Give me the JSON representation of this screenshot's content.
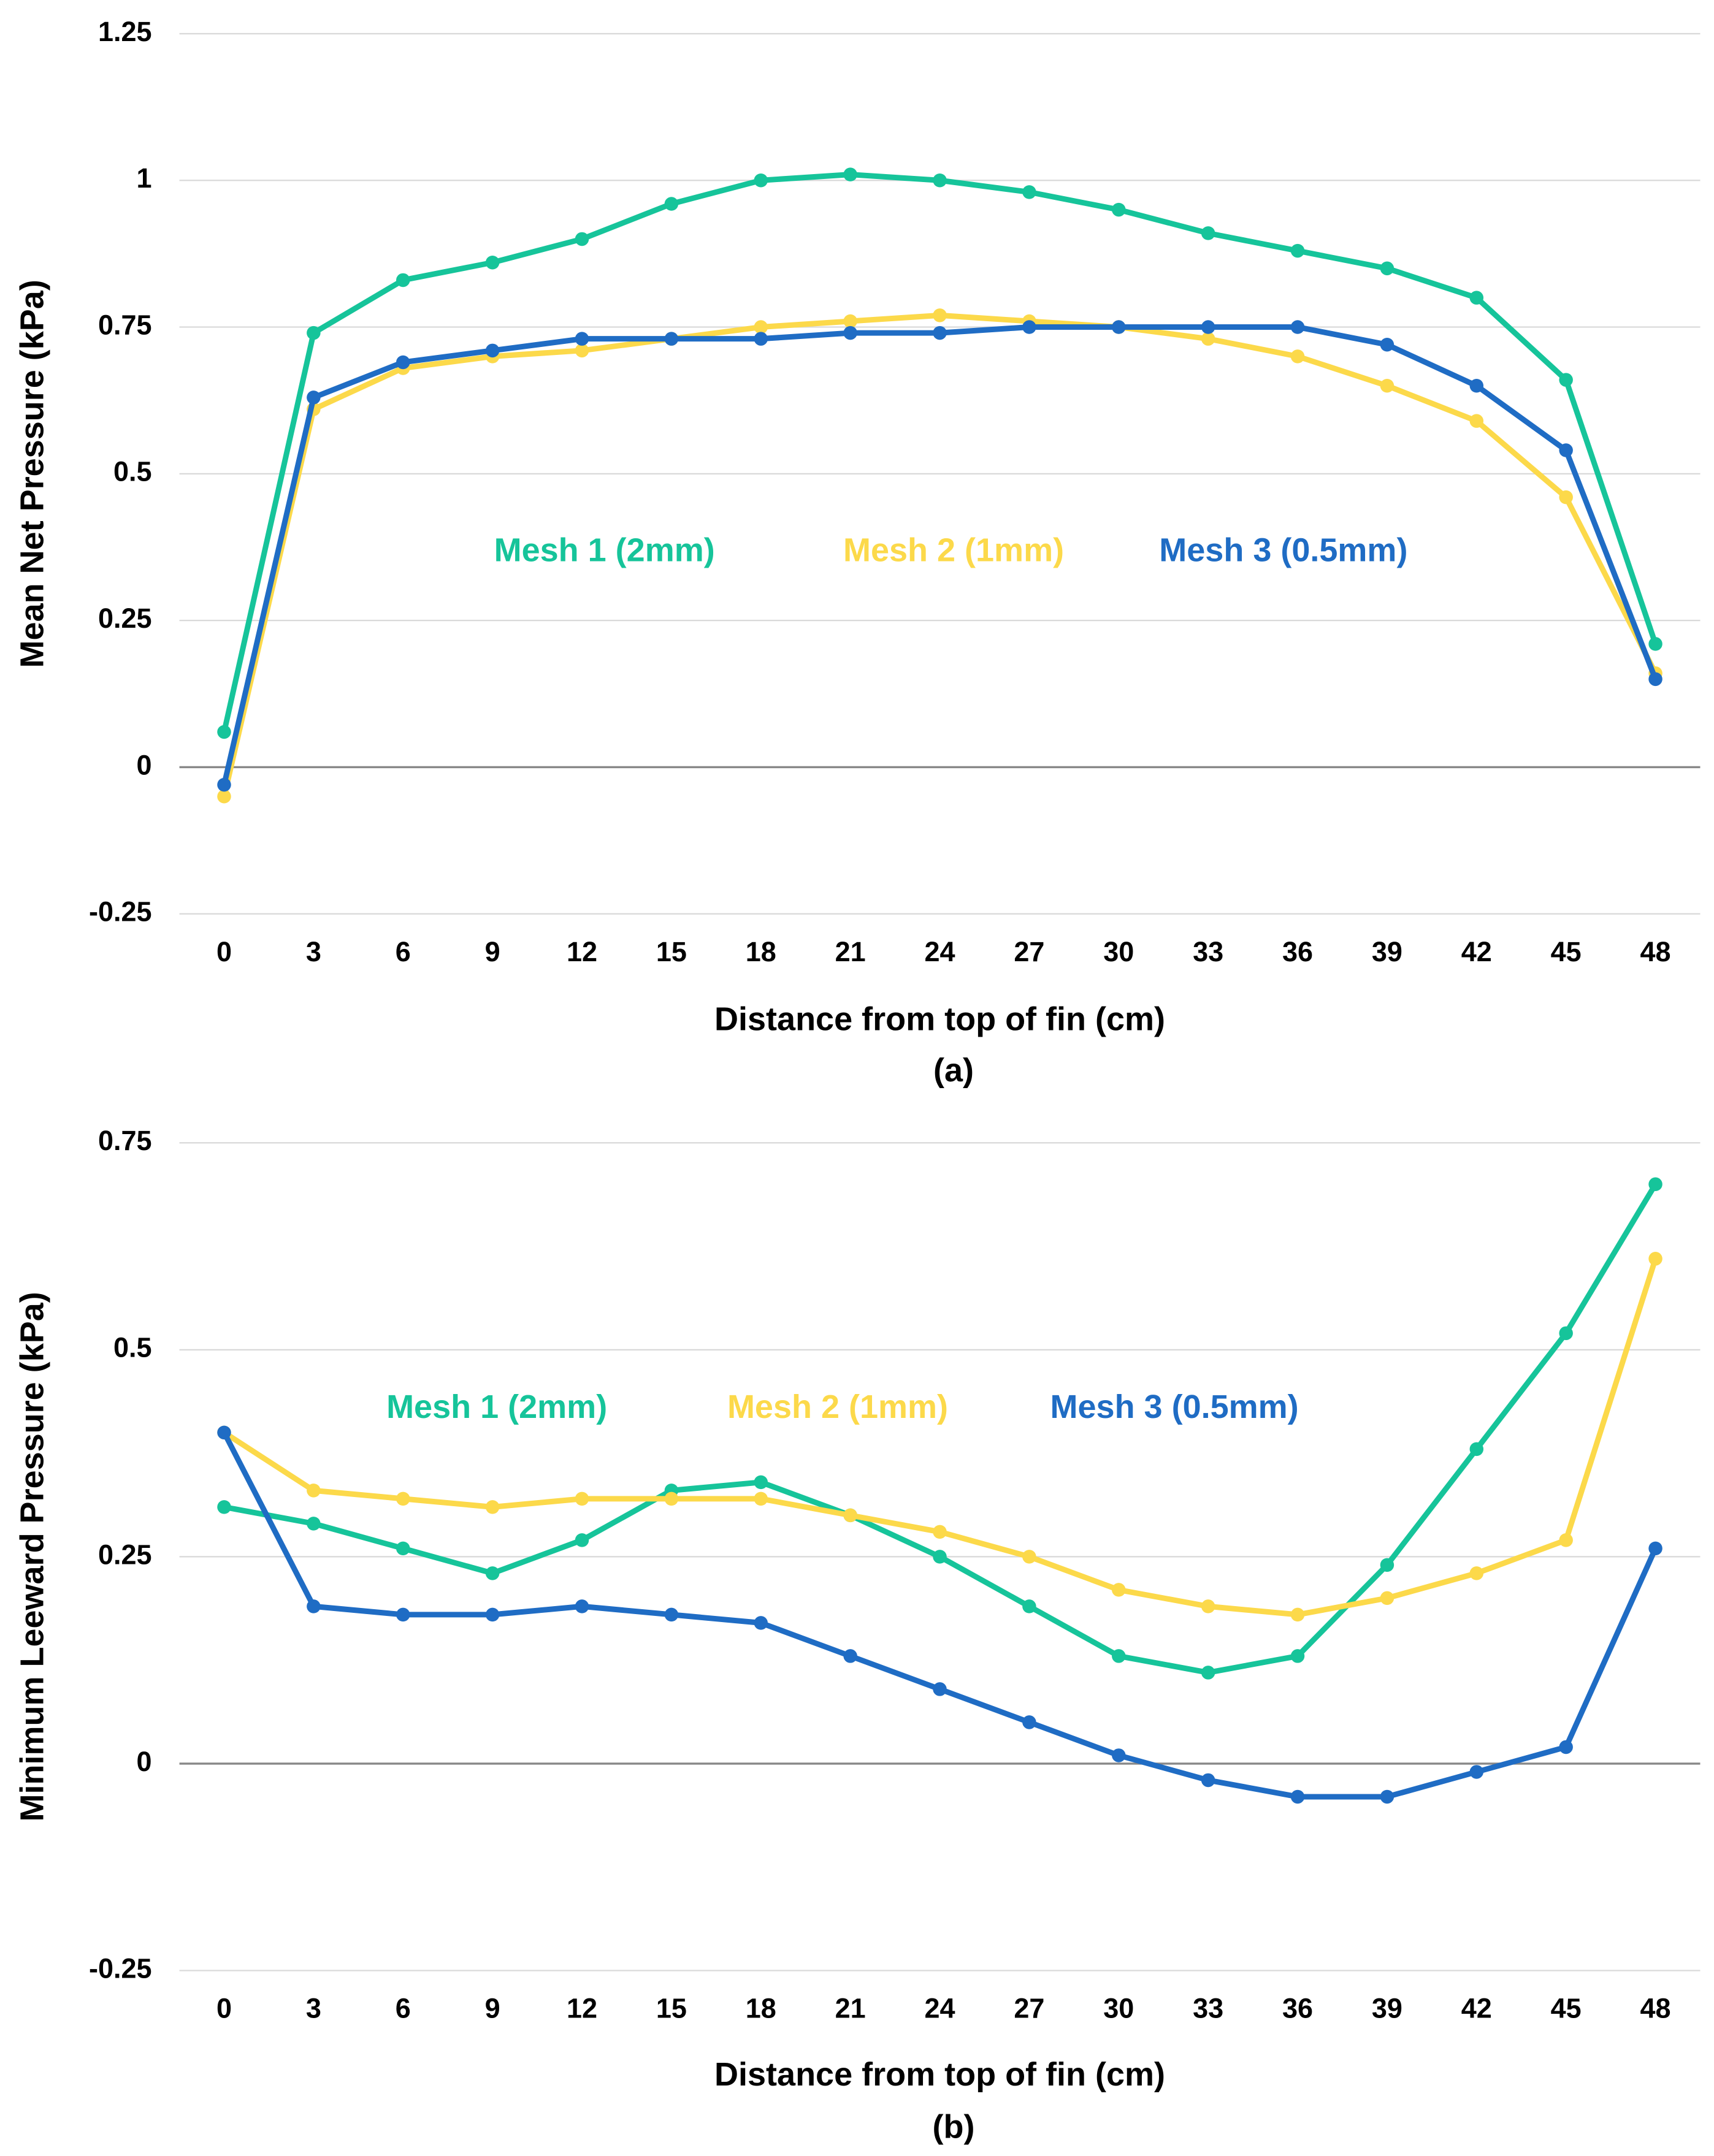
{
  "chart_data": [
    {
      "type": "line",
      "caption": "(a)",
      "xlabel": "Distance from top of fin (cm)",
      "ylabel": "Mean Net Pressure (kPa)",
      "categories": [
        0,
        3,
        6,
        9,
        12,
        15,
        18,
        21,
        24,
        27,
        30,
        33,
        36,
        39,
        42,
        45,
        48
      ],
      "ylim": [
        -0.25,
        1.25
      ],
      "yticks": [
        -0.25,
        0,
        0.25,
        0.5,
        0.75,
        1,
        1.25
      ],
      "grid": true,
      "series": [
        {
          "name": "Mesh 1 (2mm)",
          "color": "#16c49a",
          "values": [
            0.06,
            0.74,
            0.83,
            0.86,
            0.9,
            0.96,
            1.0,
            1.01,
            1.0,
            0.98,
            0.95,
            0.91,
            0.88,
            0.85,
            0.8,
            0.66,
            0.21
          ]
        },
        {
          "name": "Mesh 2 (1mm)",
          "color": "#fcd94a",
          "values": [
            -0.05,
            0.61,
            0.68,
            0.7,
            0.71,
            0.73,
            0.75,
            0.76,
            0.77,
            0.76,
            0.75,
            0.73,
            0.7,
            0.65,
            0.59,
            0.46,
            0.16
          ]
        },
        {
          "name": "Mesh 3 (0.5mm)",
          "color": "#1f6cc4",
          "values": [
            -0.03,
            0.63,
            0.69,
            0.71,
            0.73,
            0.73,
            0.73,
            0.74,
            0.74,
            0.75,
            0.75,
            0.75,
            0.75,
            0.72,
            0.65,
            0.54,
            0.15
          ]
        }
      ]
    },
    {
      "type": "line",
      "caption": "(b)",
      "xlabel": "Distance from top of fin (cm)",
      "ylabel": "Minimum Leeward Pressure (kPa)",
      "categories": [
        0,
        3,
        6,
        9,
        12,
        15,
        18,
        21,
        24,
        27,
        30,
        33,
        36,
        39,
        42,
        45,
        48
      ],
      "ylim": [
        -0.25,
        0.75
      ],
      "yticks": [
        -0.25,
        0,
        0.25,
        0.5,
        0.75
      ],
      "grid": true,
      "series": [
        {
          "name": "Mesh 1 (2mm)",
          "color": "#16c49a",
          "values": [
            0.31,
            0.29,
            0.26,
            0.23,
            0.27,
            0.33,
            0.34,
            0.3,
            0.25,
            0.19,
            0.13,
            0.11,
            0.13,
            0.24,
            0.38,
            0.52,
            0.7
          ]
        },
        {
          "name": "Mesh 2 (1mm)",
          "color": "#fcd94a",
          "values": [
            0.4,
            0.33,
            0.32,
            0.31,
            0.32,
            0.32,
            0.32,
            0.3,
            0.28,
            0.25,
            0.21,
            0.19,
            0.18,
            0.2,
            0.23,
            0.27,
            0.61
          ]
        },
        {
          "name": "Mesh 3 (0.5mm)",
          "color": "#1f6cc4",
          "values": [
            0.4,
            0.19,
            0.18,
            0.18,
            0.19,
            0.18,
            0.17,
            0.13,
            0.09,
            0.05,
            0.01,
            -0.02,
            -0.04,
            -0.04,
            -0.01,
            0.02,
            0.26
          ]
        }
      ]
    }
  ]
}
